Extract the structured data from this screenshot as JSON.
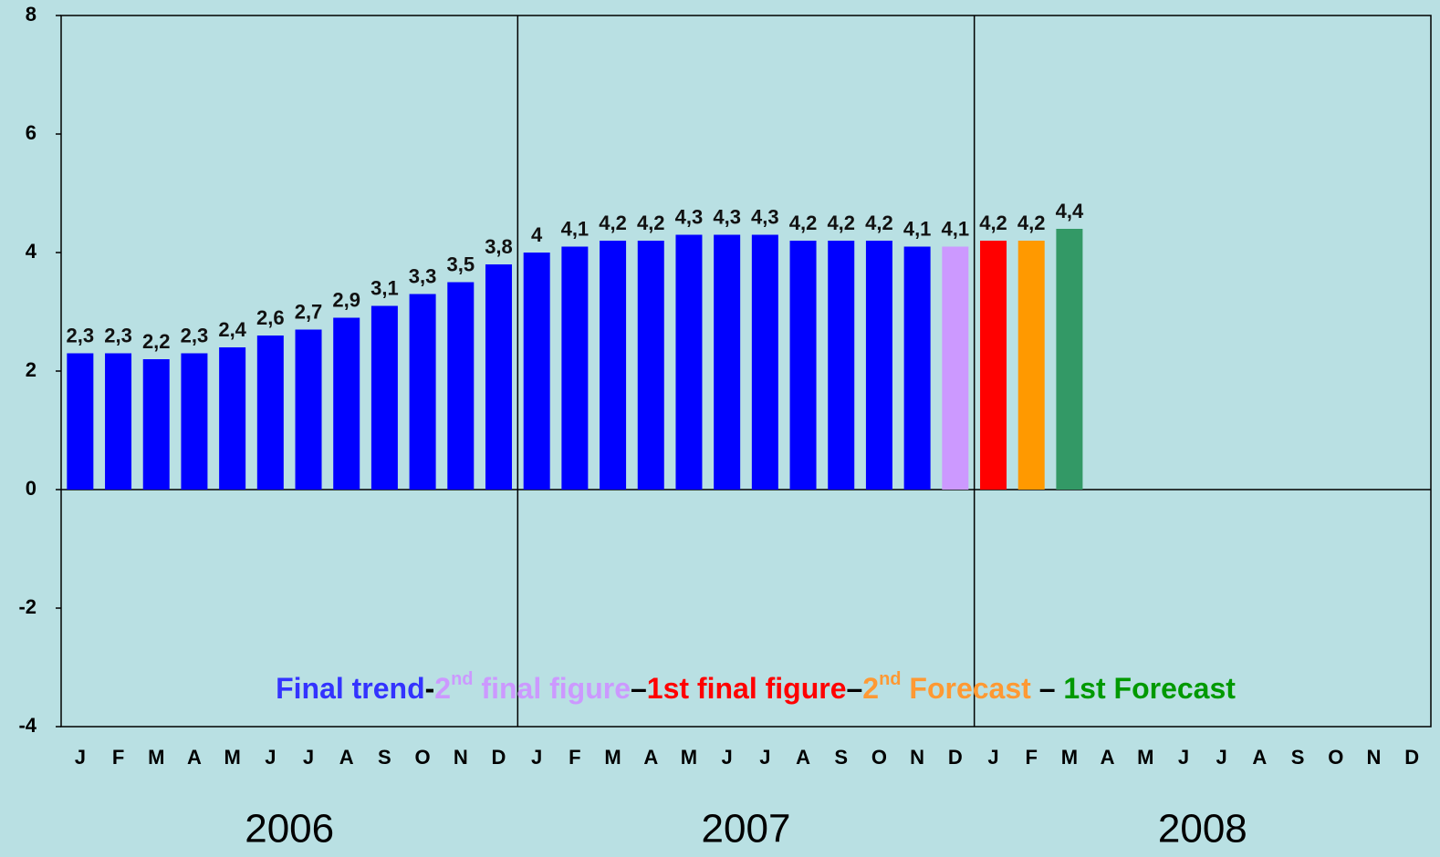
{
  "chart_data": {
    "type": "bar",
    "categories": [
      "J",
      "F",
      "M",
      "A",
      "M",
      "J",
      "J",
      "A",
      "S",
      "O",
      "N",
      "D",
      "J",
      "F",
      "M",
      "A",
      "M",
      "J",
      "J",
      "A",
      "S",
      "O",
      "N",
      "D",
      "J",
      "F",
      "M",
      "A",
      "M",
      "J",
      "J",
      "A",
      "S",
      "O",
      "N",
      "D"
    ],
    "values": [
      2.3,
      2.3,
      2.2,
      2.3,
      2.4,
      2.6,
      2.7,
      2.9,
      3.1,
      3.3,
      3.5,
      3.8,
      4,
      4.1,
      4.2,
      4.2,
      4.3,
      4.3,
      4.3,
      4.2,
      4.2,
      4.2,
      4.1,
      4.1,
      4.2,
      4.2,
      4.4,
      null,
      null,
      null,
      null,
      null,
      null,
      null,
      null,
      null
    ],
    "value_labels": [
      "2,3",
      "2,3",
      "2,2",
      "2,3",
      "2,4",
      "2,6",
      "2,7",
      "2,9",
      "3,1",
      "3,3",
      "3,5",
      "3,8",
      "4",
      "4,1",
      "4,2",
      "4,2",
      "4,3",
      "4,3",
      "4,3",
      "4,2",
      "4,2",
      "4,2",
      "4,1",
      "4,1",
      "4,2",
      "4,2",
      "4,4",
      null,
      null,
      null,
      null,
      null,
      null,
      null,
      null,
      null
    ],
    "colors": [
      "#0000ff",
      "#0000ff",
      "#0000ff",
      "#0000ff",
      "#0000ff",
      "#0000ff",
      "#0000ff",
      "#0000ff",
      "#0000ff",
      "#0000ff",
      "#0000ff",
      "#0000ff",
      "#0000ff",
      "#0000ff",
      "#0000ff",
      "#0000ff",
      "#0000ff",
      "#0000ff",
      "#0000ff",
      "#0000ff",
      "#0000ff",
      "#0000ff",
      "#0000ff",
      "#cc99ff",
      "#ff0000",
      "#ff9900",
      "#339966",
      null,
      null,
      null,
      null,
      null,
      null,
      null,
      null,
      null
    ],
    "years": [
      "2006",
      "2007",
      "2008"
    ],
    "ylim": [
      -4,
      8
    ],
    "yticks": [
      -4,
      -2,
      0,
      2,
      4,
      6,
      8
    ],
    "legend": [
      {
        "label": "Final trend",
        "color": "#3333ff"
      },
      {
        "prefix": "2",
        "sup": "nd",
        "label": " final figure",
        "color": "#cc99ff"
      },
      {
        "label": "1st final figure",
        "color": "#ff0000"
      },
      {
        "prefix": "2",
        "sup": "nd",
        "label": " Forecast",
        "color": "#ff9933"
      },
      {
        "label": "1st Forecast",
        "color": "#009900"
      }
    ],
    "legend_separators": [
      "-",
      "–",
      "–",
      " – "
    ]
  }
}
